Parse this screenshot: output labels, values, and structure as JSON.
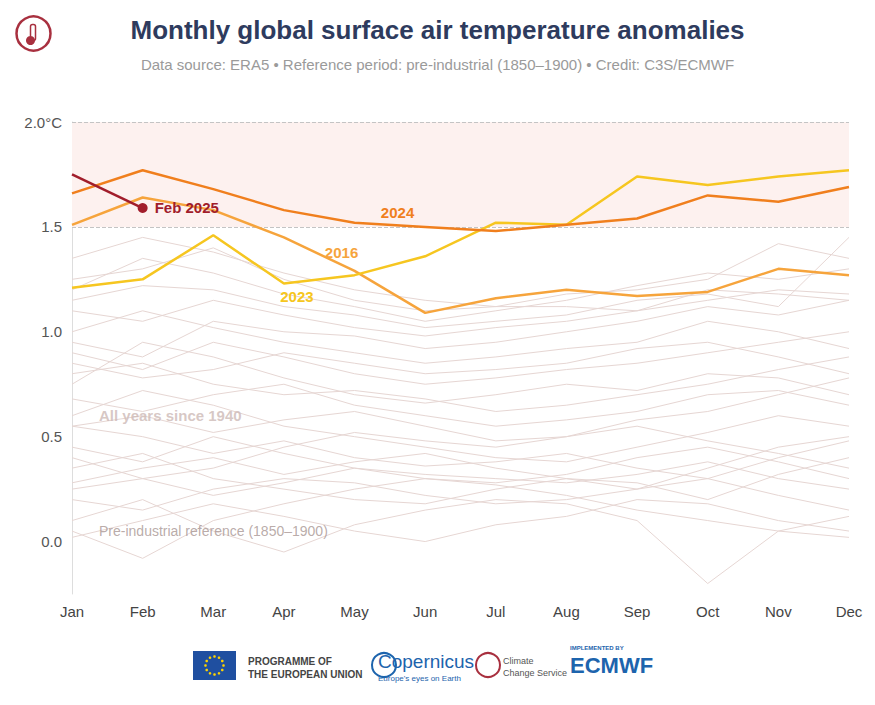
{
  "chart_data": {
    "type": "line",
    "title": "Monthly global surface air temperature anomalies",
    "subtitle": "Data source: ERA5 • Reference period: pre-industrial (1850–1900) • Credit: C3S/ECMWF",
    "categories": [
      "Jan",
      "Feb",
      "Mar",
      "Apr",
      "May",
      "Jun",
      "Jul",
      "Aug",
      "Sep",
      "Oct",
      "Nov",
      "Dec"
    ],
    "series": [
      {
        "name": "2016",
        "color": "#f6a43c",
        "label_at": "May",
        "values": [
          1.51,
          1.64,
          1.58,
          1.45,
          1.29,
          1.09,
          1.16,
          1.2,
          1.17,
          1.19,
          1.3,
          1.27
        ]
      },
      {
        "name": "2023",
        "color": "#f6c620",
        "label_at": "Apr",
        "values": [
          1.21,
          1.25,
          1.46,
          1.23,
          1.27,
          1.36,
          1.52,
          1.51,
          1.74,
          1.7,
          1.74,
          1.77
        ]
      },
      {
        "name": "2024",
        "color": "#f07f1d",
        "label_at": "May",
        "values": [
          1.66,
          1.77,
          1.68,
          1.58,
          1.52,
          1.5,
          1.48,
          1.51,
          1.54,
          1.65,
          1.62,
          1.69
        ]
      },
      {
        "name": "Feb 2025",
        "color": "#a11d2b",
        "label_at": "Feb",
        "marker": "circle",
        "values": [
          1.75,
          1.59,
          null,
          null,
          null,
          null,
          null,
          null,
          null,
          null,
          null,
          null
        ]
      }
    ],
    "background_series": {
      "label": "All years since 1940",
      "color": "#e6d6d3",
      "lines": [
        [
          0.2,
          0.15,
          0.25,
          0.3,
          0.28,
          0.22,
          0.18,
          0.2,
          0.25,
          0.3,
          0.22,
          0.15
        ],
        [
          0.05,
          -0.08,
          0.1,
          0.18,
          0.25,
          0.3,
          0.27,
          0.22,
          0.15,
          0.1,
          0.05,
          0.02
        ],
        [
          0.35,
          0.42,
          0.3,
          0.25,
          0.2,
          0.18,
          0.25,
          0.3,
          0.28,
          0.2,
          0.32,
          0.4
        ],
        [
          0.1,
          0.2,
          0.05,
          -0.05,
          0.08,
          0.15,
          0.2,
          0.18,
          0.1,
          -0.2,
          0.05,
          0.12
        ],
        [
          0.45,
          0.38,
          0.5,
          0.42,
          0.35,
          0.3,
          0.28,
          0.32,
          0.4,
          0.45,
          0.38,
          0.3
        ],
        [
          0.28,
          0.35,
          0.4,
          0.32,
          0.38,
          0.42,
          0.35,
          0.3,
          0.25,
          0.35,
          0.45,
          0.5
        ],
        [
          0.55,
          0.5,
          0.42,
          0.48,
          0.4,
          0.36,
          0.38,
          0.42,
          0.35,
          0.3,
          0.4,
          0.48
        ],
        [
          0.02,
          0.1,
          0.18,
          0.12,
          0.05,
          0.0,
          0.08,
          0.12,
          0.2,
          0.18,
          0.1,
          0.05
        ],
        [
          0.6,
          0.72,
          0.65,
          0.55,
          0.5,
          0.45,
          0.4,
          0.38,
          0.45,
          0.52,
          0.6,
          0.55
        ],
        [
          0.4,
          0.3,
          0.35,
          0.45,
          0.52,
          0.48,
          0.45,
          0.5,
          0.55,
          0.48,
          0.42,
          0.35
        ],
        [
          0.68,
          0.62,
          0.7,
          0.75,
          0.65,
          0.6,
          0.55,
          0.58,
          0.62,
          0.7,
          0.72,
          0.65
        ],
        [
          0.8,
          0.85,
          0.75,
          0.7,
          0.72,
          0.68,
          0.62,
          0.65,
          0.7,
          0.75,
          0.82,
          0.88
        ],
        [
          0.75,
          0.95,
          0.88,
          0.78,
          0.7,
          0.66,
          0.7,
          0.75,
          0.72,
          0.8,
          0.78,
          0.7
        ],
        [
          0.9,
          0.82,
          0.95,
          0.88,
          0.8,
          0.75,
          0.78,
          0.82,
          0.85,
          0.9,
          0.95,
          1.0
        ],
        [
          1.0,
          1.1,
          1.02,
          0.95,
          0.9,
          0.85,
          0.88,
          0.92,
          0.95,
          1.05,
          1.0,
          0.92
        ],
        [
          0.95,
          0.88,
          1.05,
          1.0,
          0.98,
          0.92,
          0.95,
          1.0,
          1.05,
          1.12,
          1.08,
          1.15
        ],
        [
          1.1,
          1.05,
          1.15,
          1.08,
          1.02,
          0.98,
          1.02,
          1.05,
          1.1,
          1.15,
          1.2,
          1.18
        ],
        [
          1.2,
          1.35,
          1.28,
          1.18,
          1.12,
          1.05,
          1.1,
          1.15,
          1.22,
          1.28,
          1.25,
          1.3
        ],
        [
          1.25,
          1.3,
          1.4,
          1.25,
          1.15,
          1.1,
          1.12,
          1.18,
          1.2,
          1.25,
          1.42,
          1.35
        ],
        [
          1.15,
          1.22,
          1.2,
          1.12,
          1.08,
          1.02,
          1.05,
          1.08,
          1.15,
          1.18,
          1.12,
          1.45
        ],
        [
          1.35,
          1.45,
          1.38,
          1.28,
          1.2,
          1.15,
          1.12,
          1.12,
          1.1,
          1.2,
          1.18,
          1.15
        ],
        [
          0.55,
          0.6,
          0.52,
          0.58,
          0.62,
          0.55,
          0.48,
          0.5,
          0.58,
          0.62,
          0.7,
          0.78
        ],
        [
          0.25,
          0.3,
          0.22,
          0.28,
          0.35,
          0.32,
          0.3,
          0.28,
          0.32,
          0.38,
          0.3,
          0.25
        ],
        [
          0.85,
          0.78,
          0.82,
          0.9,
          0.85,
          0.8,
          0.82,
          0.85,
          0.92,
          0.95,
          0.88,
          0.8
        ]
      ]
    },
    "annotations": [
      {
        "text": "All years since 1940",
        "x": "Jan",
        "y": 0.6
      },
      {
        "text": "Pre-industrial reference (1850–1900)",
        "x": "Jan",
        "y": 0.05
      }
    ],
    "shaded_band": [
      1.5,
      2.0
    ],
    "ylim": [
      -0.25,
      2.0
    ],
    "yticks": [
      {
        "value": 0,
        "label": "0.0"
      },
      0.5,
      {
        "value": 1,
        "label": "1.0"
      },
      1.5,
      {
        "value": 2,
        "label": "2.0°C"
      }
    ],
    "grid": false,
    "footer": [
      {
        "lines": [
          "PROGRAMME OF",
          "THE EUROPEAN UNION"
        ]
      },
      {
        "lines": [
          "Copernicus",
          "Europe's eyes on Earth"
        ]
      },
      {
        "lines": [
          "Climate",
          "Change Service"
        ]
      },
      {
        "lines": [
          "IMPLEMENTED BY",
          "ECMWF"
        ]
      }
    ]
  }
}
